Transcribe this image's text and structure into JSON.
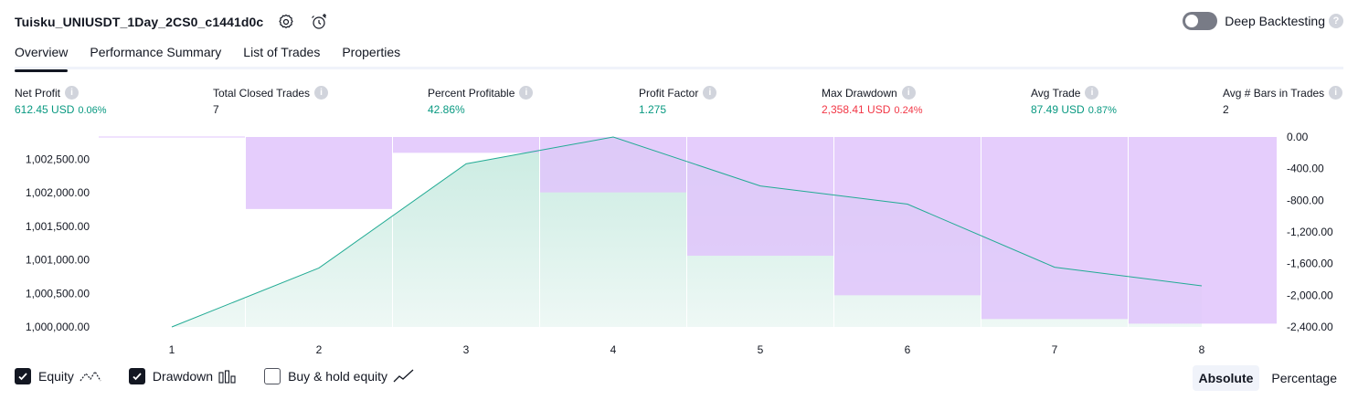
{
  "header": {
    "strategy_name": "Tuisku_UNIUSDT_1Day_2CS0_c1441d0c",
    "deep_backtesting_label": "Deep Backtesting"
  },
  "tabs": [
    {
      "label": "Overview",
      "active": true
    },
    {
      "label": "Performance Summary",
      "active": false
    },
    {
      "label": "List of Trades",
      "active": false
    },
    {
      "label": "Properties",
      "active": false
    }
  ],
  "metrics": {
    "net_profit": {
      "label": "Net Profit",
      "value": "612.45 USD",
      "pct": "0.06%"
    },
    "total_closed_trades": {
      "label": "Total Closed Trades",
      "value": "7"
    },
    "percent_profitable": {
      "label": "Percent Profitable",
      "value": "42.86%"
    },
    "profit_factor": {
      "label": "Profit Factor",
      "value": "1.275"
    },
    "max_drawdown": {
      "label": "Max Drawdown",
      "value": "2,358.41 USD",
      "pct": "0.24%"
    },
    "avg_trade": {
      "label": "Avg Trade",
      "value": "87.49 USD",
      "pct": "0.87%"
    },
    "avg_bars": {
      "label": "Avg # Bars in Trades",
      "value": "2"
    }
  },
  "chart_data": {
    "type": "area",
    "x": [
      1,
      2,
      3,
      4,
      5,
      6,
      7,
      8
    ],
    "x_tick_labels": [
      "1",
      "2",
      "3",
      "4",
      "5",
      "6",
      "7",
      "8"
    ],
    "series": [
      {
        "values": [
          1000000.0,
          1000878,
          1002430,
          1002830,
          1002100,
          1001830,
          1000890,
          1000612.45
        ]
      },
      {
        "values": [
          0,
          -910,
          -200,
          -700,
          -1500,
          -2000,
          -2300,
          -2358.41
        ]
      }
    ],
    "left_axis": {
      "ticks": [
        "1,000,000.00",
        "1,000,500.00",
        "1,001,000.00",
        "1,001,500.00",
        "1,002,000.00",
        "1,002,500.00"
      ],
      "range": [
        1000000,
        1002830
      ]
    },
    "right_axis": {
      "ticks": [
        "0.00",
        "-400.00",
        "-800.00",
        "-1,200.00",
        "-1,600.00",
        "-2,000.00",
        "-2,400.00"
      ],
      "range": [
        0,
        -2400
      ]
    },
    "colors": {
      "equity_line": "#22ab94",
      "equity_fill": "#c9ebe1",
      "drawdown_fill": "#e1c4fc"
    }
  },
  "legend": {
    "equity": {
      "label": "Equity",
      "checked": true
    },
    "drawdown": {
      "label": "Drawdown",
      "checked": true
    },
    "buy_hold": {
      "label": "Buy & hold equity",
      "checked": false
    }
  },
  "mode": {
    "absolute": "Absolute",
    "percentage": "Percentage",
    "selected": "Absolute"
  }
}
